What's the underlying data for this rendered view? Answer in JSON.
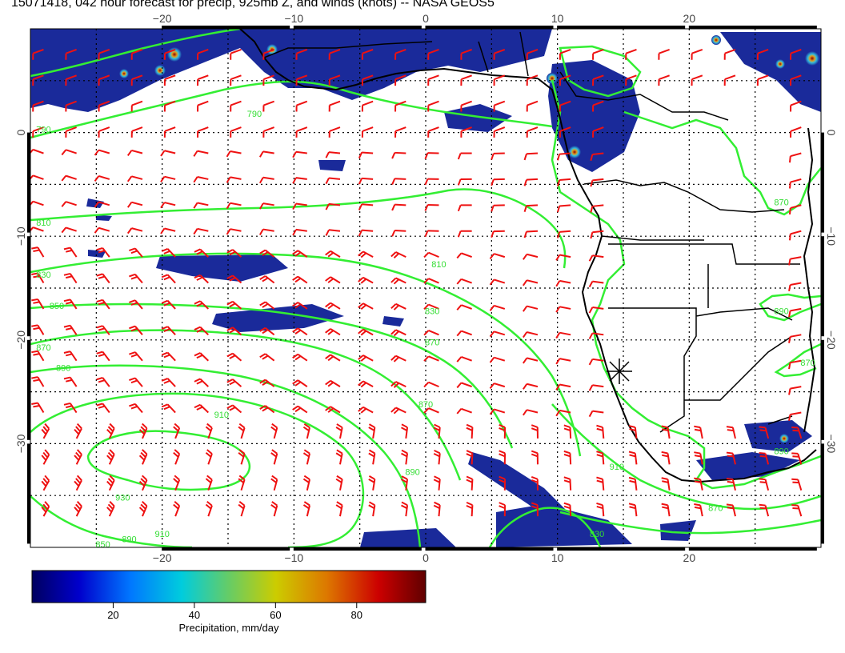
{
  "title": "15071418, 042 hour forecast for precip, 925mb Z, and winds (knots) -- NASA GEOS5",
  "map": {
    "lon_range": [
      -30,
      30
    ],
    "lat_range": [
      -40,
      10
    ],
    "lon_ticks": [
      {
        "value": -20,
        "label": "−20"
      },
      {
        "value": -10,
        "label": "−10"
      },
      {
        "value": 0,
        "label": "0"
      },
      {
        "value": 10,
        "label": "10"
      },
      {
        "value": 20,
        "label": "20"
      }
    ],
    "lat_ticks": [
      {
        "value": 0,
        "label": "0"
      },
      {
        "value": -10,
        "label": "−10"
      },
      {
        "value": -20,
        "label": "−20"
      },
      {
        "value": -30,
        "label": "−30"
      }
    ],
    "grid": "dotted",
    "colors": {
      "contour": "#33ee33",
      "wind_barb": "#ee1111",
      "coast": "#000000",
      "precip_low": "#1a2a9a",
      "precip_mid": "#33bbdd",
      "precip_high": "#8b0000"
    },
    "contour_labels": [
      {
        "text": "790",
        "lon": -29,
        "lat": 0
      },
      {
        "text": "790",
        "lon": -13,
        "lat": 1.5
      },
      {
        "text": "810",
        "lon": -29,
        "lat": -9
      },
      {
        "text": "810",
        "lon": 1,
        "lat": -13
      },
      {
        "text": "830",
        "lon": -29,
        "lat": -14
      },
      {
        "text": "830",
        "lon": 0.5,
        "lat": -17.5
      },
      {
        "text": "850",
        "lon": -28,
        "lat": -17
      },
      {
        "text": "870",
        "lon": -29,
        "lat": -21
      },
      {
        "text": "870",
        "lon": 0.5,
        "lat": -20.5
      },
      {
        "text": "890",
        "lon": -27.5,
        "lat": -23
      },
      {
        "text": "910",
        "lon": -15.5,
        "lat": -27.5
      },
      {
        "text": "870",
        "lon": 0,
        "lat": -26.5
      },
      {
        "text": "930",
        "lon": -23,
        "lat": -35.5
      },
      {
        "text": "890",
        "lon": -1,
        "lat": -33
      },
      {
        "text": "910",
        "lon": 14.5,
        "lat": -32.5
      },
      {
        "text": "830",
        "lon": 13,
        "lat": -39
      },
      {
        "text": "870",
        "lon": 22,
        "lat": -36.5
      },
      {
        "text": "890",
        "lon": -22.5,
        "lat": -39.5
      },
      {
        "text": "910",
        "lon": -20,
        "lat": -39
      },
      {
        "text": "850",
        "lon": -24.5,
        "lat": -40
      },
      {
        "text": "870",
        "lon": 27,
        "lat": -7
      },
      {
        "text": "890",
        "lon": 27,
        "lat": -17.5
      },
      {
        "text": "870",
        "lon": 29,
        "lat": -22.5
      },
      {
        "text": "890",
        "lon": 27,
        "lat": -31
      }
    ]
  },
  "colorbar": {
    "ticks": [
      {
        "value": 20,
        "label": "20"
      },
      {
        "value": 40,
        "label": "40"
      },
      {
        "value": 60,
        "label": "60"
      },
      {
        "value": 80,
        "label": "80"
      }
    ],
    "range": [
      0,
      97
    ],
    "label": "Precipitation, mm/day"
  }
}
